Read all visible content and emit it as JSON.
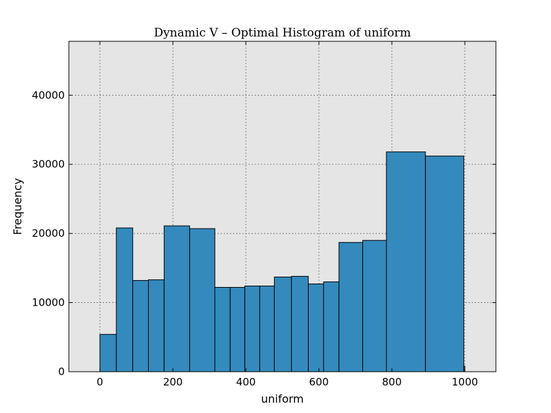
{
  "chart_data": {
    "type": "bar",
    "title": "Dynamic V – Optimal Histogram of uniform",
    "xlabel": "uniform",
    "ylabel": "Frequency",
    "xlim": [
      -85,
      1085
    ],
    "ylim": [
      0,
      47800
    ],
    "grid": true,
    "background": "#e5e5e5",
    "bar_color": "#348abd",
    "x_ticks": [
      {
        "value": 0,
        "label": "0"
      },
      {
        "value": 200,
        "label": "200"
      },
      {
        "value": 400,
        "label": "400"
      },
      {
        "value": 600,
        "label": "600"
      },
      {
        "value": 800,
        "label": "800"
      },
      {
        "value": 1000,
        "label": "1000"
      }
    ],
    "y_ticks": [
      {
        "value": 0,
        "label": "0"
      },
      {
        "value": 10000,
        "label": "10000"
      },
      {
        "value": 20000,
        "label": "20000"
      },
      {
        "value": 30000,
        "label": "30000"
      },
      {
        "value": 40000,
        "label": "40000"
      }
    ],
    "bins": [
      {
        "start": 0,
        "end": 45,
        "count": 5400
      },
      {
        "start": 45,
        "end": 90,
        "count": 20800
      },
      {
        "start": 90,
        "end": 133,
        "count": 13200
      },
      {
        "start": 133,
        "end": 176,
        "count": 13300
      },
      {
        "start": 176,
        "end": 246,
        "count": 21100
      },
      {
        "start": 246,
        "end": 315,
        "count": 20700
      },
      {
        "start": 315,
        "end": 357,
        "count": 12200
      },
      {
        "start": 357,
        "end": 397,
        "count": 12200
      },
      {
        "start": 397,
        "end": 438,
        "count": 12400
      },
      {
        "start": 438,
        "end": 478,
        "count": 12400
      },
      {
        "start": 478,
        "end": 525,
        "count": 13700
      },
      {
        "start": 525,
        "end": 571,
        "count": 13800
      },
      {
        "start": 571,
        "end": 613,
        "count": 12700
      },
      {
        "start": 613,
        "end": 655,
        "count": 13000
      },
      {
        "start": 655,
        "end": 720,
        "count": 18700
      },
      {
        "start": 720,
        "end": 785,
        "count": 19000
      },
      {
        "start": 785,
        "end": 892,
        "count": 31800
      },
      {
        "start": 892,
        "end": 997,
        "count": 31200
      },
      {
        "start": 997,
        "end": 1000,
        "count": 800
      }
    ]
  }
}
